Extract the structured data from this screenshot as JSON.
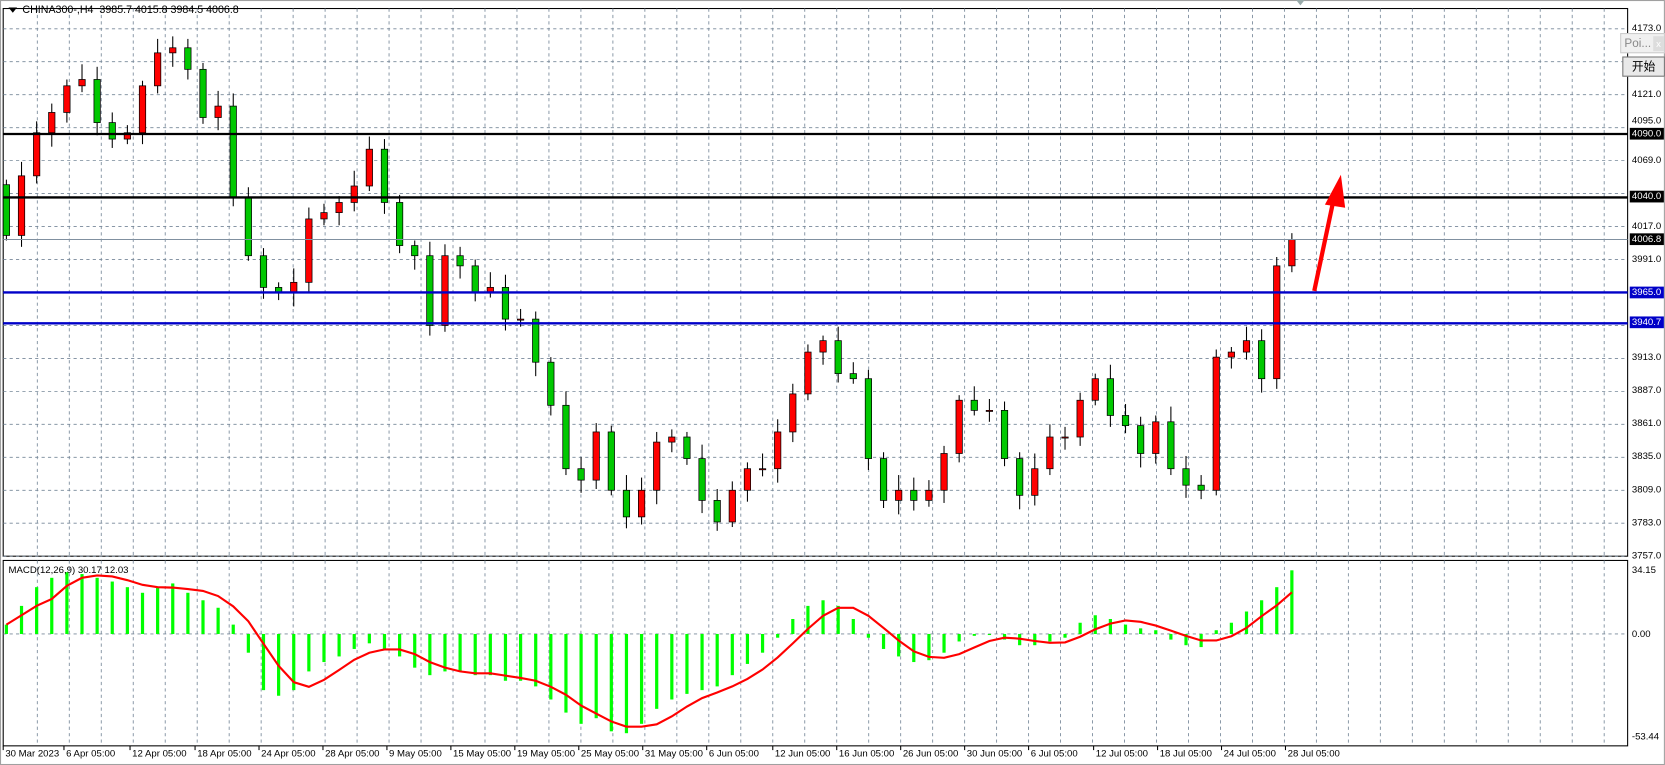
{
  "header": {
    "symbol": "CHINA300-,H4",
    "ohlc": "3985.7 4015.8 3984.5 4006.8"
  },
  "macd": {
    "label": "MACD(12,26,9) 30.17 12.03",
    "axis": {
      "max": "34.15",
      "zero": "0.00",
      "min": "-53.44"
    }
  },
  "popup": {
    "title": "Poi...",
    "close": "x",
    "start_button": "开始"
  },
  "colors": {
    "bull": "#ff0000",
    "bear": "#00c800",
    "histogram": "#00ff00",
    "signal": "#ff0000",
    "support": "#0000c8",
    "resistance": "#000000",
    "arrow": "#ff0000",
    "grid": "#778899"
  },
  "chart_data": {
    "type": "candlestick",
    "ylim": [
      3757,
      4173
    ],
    "price_ticks": [
      "4173.0",
      "4121.0",
      "4095.0",
      "4069.0",
      "4017.0",
      "3991.0",
      "3913.0",
      "3887.0",
      "3861.0",
      "3835.0",
      "3809.0",
      "3783.0",
      "3757.0"
    ],
    "time_ticks": [
      "30 Mar 2023",
      "6 Apr 05:00",
      "12 Apr 05:00",
      "18 Apr 05:00",
      "24 Apr 05:00",
      "28 Apr 05:00",
      "9 May 05:00",
      "15 May 05:00",
      "19 May 05:00",
      "25 May 05:00",
      "31 May 05:00",
      "6 Jun 05:00",
      "12 Jun 05:00",
      "16 Jun 05:00",
      "26 Jun 05:00",
      "30 Jun 05:00",
      "6 Jul 05:00",
      "12 Jul 05:00",
      "18 Jul 05:00",
      "24 Jul 05:00",
      "28 Jul 05:00"
    ],
    "closes": [
      4010,
      4057,
      4091,
      4107,
      4128,
      4133,
      4099,
      4086,
      4091,
      4128,
      4154,
      4158,
      4141,
      4103,
      4112,
      4040,
      3994,
      3969,
      3965,
      3973,
      4023,
      4028,
      4036,
      4049,
      4078,
      4036,
      4002,
      3994,
      3939,
      3994,
      3986,
      3965,
      3969,
      3944,
      3944,
      3910,
      3876,
      3826,
      3817,
      3855,
      3809,
      3788,
      3809,
      3847,
      3851,
      3834,
      3801,
      3784,
      3809,
      3826,
      3826,
      3855,
      3885,
      3918,
      3927,
      3901,
      3897,
      3834,
      3801,
      3809,
      3801,
      3809,
      3838,
      3880,
      3872,
      3872,
      3834,
      3805,
      3826,
      3851,
      3851,
      3880,
      3897,
      3868,
      3860,
      3838,
      3863,
      3826,
      3813,
      3809,
      3914,
      3918,
      3927,
      3897,
      3986,
      4006.8
    ],
    "first_open": 4050,
    "macd_histogram": [
      5,
      15,
      25,
      30,
      33,
      32,
      30,
      28,
      25,
      22,
      25,
      27,
      22,
      18,
      14,
      5,
      -10,
      -30,
      -33,
      -30,
      -20,
      -15,
      -12,
      -8,
      -5,
      -8,
      -12,
      -18,
      -22,
      -20,
      -20,
      -22,
      -22,
      -25,
      -25,
      -28,
      -35,
      -42,
      -48,
      -45,
      -52,
      -53,
      -48,
      -40,
      -35,
      -32,
      -30,
      -28,
      -22,
      -16,
      -10,
      -2,
      8,
      15,
      18,
      15,
      8,
      -2,
      -8,
      -12,
      -15,
      -14,
      -10,
      -4,
      -1,
      0,
      -3,
      -6,
      -6,
      -4,
      -2,
      6,
      10,
      8,
      5,
      3,
      2,
      -3,
      -6,
      -7,
      2,
      6,
      12,
      18,
      25,
      34
    ],
    "horizontal_lines": [
      {
        "price": 4090.0,
        "label": "4090.0",
        "color": "#000000"
      },
      {
        "price": 4040.0,
        "label": "4040.0",
        "color": "#000000"
      },
      {
        "price": 3965.0,
        "label": "3965.0",
        "color": "#0000c8"
      },
      {
        "price": 3940.7,
        "label": "3940.7",
        "color": "#0000c8"
      }
    ],
    "current_price": {
      "price": 4006.8,
      "label": "4006.8"
    }
  }
}
